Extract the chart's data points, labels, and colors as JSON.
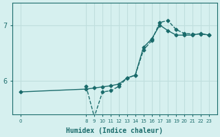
{
  "xlabel": "Humidex (Indice chaleur)",
  "ylabel": "",
  "background_color": "#d6f0ef",
  "line_color": "#1a6b6b",
  "grid_color": "#c0dedd",
  "x_ticks": [
    0,
    8,
    9,
    10,
    11,
    12,
    13,
    14,
    15,
    16,
    17,
    18,
    19,
    20,
    21,
    22,
    23
  ],
  "ylim": [
    5.4,
    7.4
  ],
  "xlim": [
    -1,
    24
  ],
  "series1_x": [
    0,
    8,
    9,
    10,
    11,
    12,
    13,
    14,
    15,
    16,
    17,
    18,
    19,
    20,
    21,
    22,
    23
  ],
  "series1_y": [
    5.8,
    5.85,
    5.87,
    5.89,
    5.91,
    5.94,
    6.05,
    6.1,
    6.6,
    6.75,
    7.0,
    6.9,
    6.82,
    6.82,
    6.82,
    6.85,
    6.82
  ],
  "series2_x": [
    8,
    9,
    10,
    11,
    12,
    13,
    14,
    15,
    16,
    17,
    18,
    19,
    20,
    21,
    22,
    23
  ],
  "series2_y": [
    5.9,
    5.35,
    5.8,
    5.82,
    5.9,
    6.05,
    6.1,
    6.55,
    6.72,
    7.05,
    7.08,
    6.92,
    6.85,
    6.84,
    6.84,
    6.82
  ],
  "yticks": [
    6,
    7
  ],
  "font_color": "#1a6b6b"
}
